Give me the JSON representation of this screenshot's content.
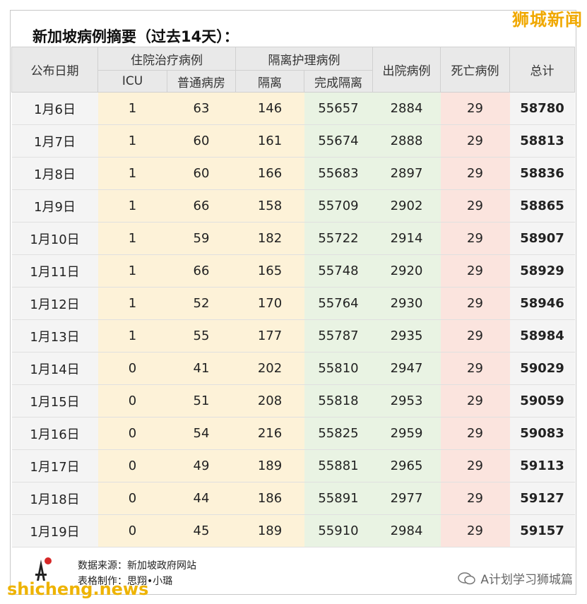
{
  "brand_top": "狮城新闻",
  "title": "新加坡病例摘要（过去14天）：",
  "headers": {
    "date": "公布日期",
    "hospital_group": "住院治疗病例",
    "icu": "ICU",
    "ward": "普通病房",
    "isolation_group": "隔离护理病例",
    "isolation": "隔离",
    "completed": "完成隔离",
    "discharged": "出院病例",
    "deaths": "死亡病例",
    "total": "总计"
  },
  "rows": [
    {
      "date": "1月6日",
      "icu": "1",
      "ward": "63",
      "iso": "146",
      "done": "55657",
      "dis": "2884",
      "death": "29",
      "total": "58780"
    },
    {
      "date": "1月7日",
      "icu": "1",
      "ward": "60",
      "iso": "161",
      "done": "55674",
      "dis": "2888",
      "death": "29",
      "total": "58813"
    },
    {
      "date": "1月8日",
      "icu": "1",
      "ward": "60",
      "iso": "166",
      "done": "55683",
      "dis": "2897",
      "death": "29",
      "total": "58836"
    },
    {
      "date": "1月9日",
      "icu": "1",
      "ward": "66",
      "iso": "158",
      "done": "55709",
      "dis": "2902",
      "death": "29",
      "total": "58865"
    },
    {
      "date": "1月10日",
      "icu": "1",
      "ward": "59",
      "iso": "182",
      "done": "55722",
      "dis": "2914",
      "death": "29",
      "total": "58907"
    },
    {
      "date": "1月11日",
      "icu": "1",
      "ward": "66",
      "iso": "165",
      "done": "55748",
      "dis": "2920",
      "death": "29",
      "total": "58929"
    },
    {
      "date": "1月12日",
      "icu": "1",
      "ward": "52",
      "iso": "170",
      "done": "55764",
      "dis": "2930",
      "death": "29",
      "total": "58946"
    },
    {
      "date": "1月13日",
      "icu": "1",
      "ward": "55",
      "iso": "177",
      "done": "55787",
      "dis": "2935",
      "death": "29",
      "total": "58984"
    },
    {
      "date": "1月14日",
      "icu": "0",
      "ward": "41",
      "iso": "202",
      "done": "55810",
      "dis": "2947",
      "death": "29",
      "total": "59029"
    },
    {
      "date": "1月15日",
      "icu": "0",
      "ward": "51",
      "iso": "208",
      "done": "55818",
      "dis": "2953",
      "death": "29",
      "total": "59059"
    },
    {
      "date": "1月16日",
      "icu": "0",
      "ward": "54",
      "iso": "216",
      "done": "55825",
      "dis": "2959",
      "death": "29",
      "total": "59083"
    },
    {
      "date": "1月17日",
      "icu": "0",
      "ward": "49",
      "iso": "189",
      "done": "55881",
      "dis": "2965",
      "death": "29",
      "total": "59113"
    },
    {
      "date": "1月18日",
      "icu": "0",
      "ward": "44",
      "iso": "186",
      "done": "55891",
      "dis": "2977",
      "death": "29",
      "total": "59127"
    },
    {
      "date": "1月19日",
      "icu": "0",
      "ward": "45",
      "iso": "189",
      "done": "55910",
      "dis": "2984",
      "death": "29",
      "total": "59157"
    }
  ],
  "footer": {
    "source": "数据来源：新加坡政府网站",
    "maker": "表格制作：思翔•小璐"
  },
  "watermark_left": "shicheng.news",
  "watermark_right": "A计划学习狮城篇",
  "colors": {
    "yellow": "#fdf2d8",
    "green": "#e9f3e3",
    "pink": "#fbe4de",
    "header": "#e9e9e9",
    "brand": "#f0a800"
  }
}
